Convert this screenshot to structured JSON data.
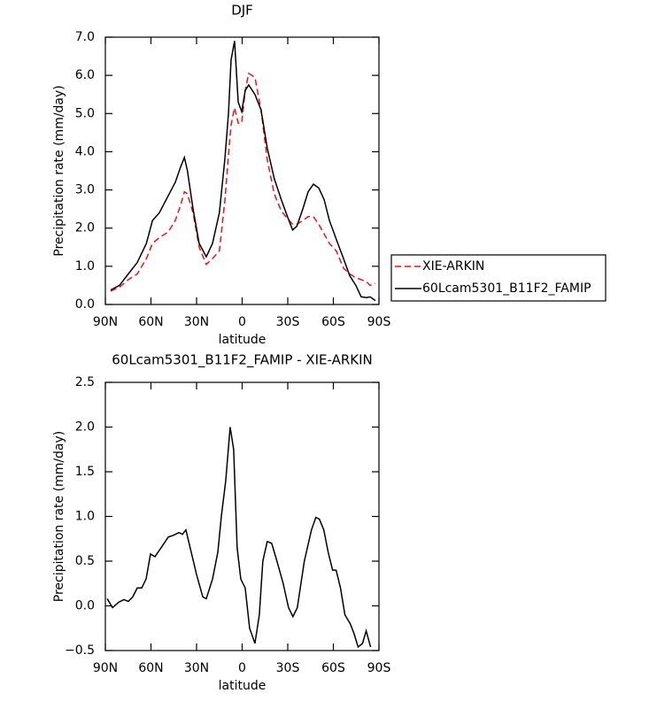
{
  "chart_data": [
    {
      "type": "line",
      "title": "DJF",
      "xlabel": "latitude",
      "ylabel": "Precipitation rate (mm/day)",
      "x": [
        86.5,
        80.7,
        74.9,
        69,
        63,
        59,
        54.5,
        48.6,
        44,
        40.5,
        38,
        36,
        32.3,
        28.3,
        23.6,
        19.5,
        15,
        11.4,
        9,
        7.3,
        5,
        2.6,
        0.3,
        -2,
        -4.3,
        -8.4,
        -12.4,
        -16.5,
        -21.1,
        -25.7,
        -29.8,
        -33.2,
        -36,
        -39.9,
        -43.4,
        -46.9,
        -50.4,
        -53.9,
        -57.4,
        -62,
        -66.7,
        -70.8,
        -74.8,
        -78.3,
        -81.8,
        -84.2,
        -87.7
      ],
      "series": [
        {
          "name": "XIE-ARKIN",
          "color": "#e8141a",
          "line_style": "dashed",
          "values": [
            0.35,
            0.45,
            0.65,
            0.8,
            1.2,
            1.6,
            1.75,
            1.9,
            2.2,
            2.6,
            2.95,
            2.9,
            2.4,
            1.5,
            1.05,
            1.2,
            1.4,
            2.7,
            3.9,
            4.7,
            5.15,
            4.75,
            4.75,
            5.6,
            6.05,
            5.95,
            5.1,
            3.8,
            2.9,
            2.45,
            2.25,
            2.1,
            2.1,
            2.2,
            2.3,
            2.3,
            2.1,
            1.85,
            1.6,
            1.4,
            0.95,
            0.8,
            0.7,
            0.65,
            0.6,
            0.5,
            0.55
          ]
        },
        {
          "name": "60Lcam5301_B11F2_FAMIP",
          "color": "#000000",
          "line_style": "solid",
          "values": [
            0.38,
            0.5,
            0.8,
            1.1,
            1.6,
            2.2,
            2.4,
            2.85,
            3.2,
            3.6,
            3.85,
            3.5,
            2.5,
            1.6,
            1.25,
            1.6,
            2.4,
            3.8,
            5.0,
            6.4,
            6.9,
            5.3,
            5.05,
            5.6,
            5.75,
            5.5,
            5.1,
            4.1,
            3.3,
            2.75,
            2.3,
            1.95,
            2.05,
            2.5,
            2.95,
            3.15,
            3.05,
            2.75,
            2.2,
            1.7,
            1.2,
            0.75,
            0.5,
            0.2,
            0.18,
            0.2,
            0.1
          ]
        }
      ],
      "legend": "right",
      "xlim": [
        90,
        -90
      ],
      "xticks": [
        {
          "value": 90,
          "label": "90N"
        },
        {
          "value": 60,
          "label": "60N"
        },
        {
          "value": 30,
          "label": "30N"
        },
        0,
        {
          "value": -30,
          "label": "30S"
        },
        {
          "value": -60,
          "label": "60S"
        },
        {
          "value": -90,
          "label": "90S"
        }
      ],
      "ylim": [
        0,
        7
      ],
      "yticks": [
        {
          "value": 0,
          "label": "0.0"
        },
        {
          "value": 1,
          "label": "1.0"
        },
        {
          "value": 2,
          "label": "2.0"
        },
        {
          "value": 3,
          "label": "3.0"
        },
        {
          "value": 4,
          "label": "4.0"
        },
        {
          "value": 5,
          "label": "5.0"
        },
        {
          "value": 6,
          "label": "6.0"
        },
        {
          "value": 7,
          "label": "7.0"
        }
      ]
    },
    {
      "type": "line",
      "title": "60Lcam5301_B11F2_FAMIP - XIE-ARKIN",
      "xlabel": "latitude",
      "ylabel": "Precipitation rate (mm/day)",
      "color": "#000000",
      "x": [
        88.8,
        85.3,
        81.3,
        77.8,
        74.9,
        72,
        69,
        66.1,
        63.2,
        60.3,
        57.4,
        53.3,
        48.6,
        45.1,
        41.6,
        39.3,
        37,
        33.5,
        30,
        25.9,
        23.6,
        19.5,
        16,
        13.7,
        10.8,
        7.9,
        5.6,
        3.3,
        0.9,
        -2,
        -4.9,
        -8.4,
        -11.3,
        -13.6,
        -16.5,
        -19.4,
        -22.9,
        -27,
        -30.5,
        -33.4,
        -36.3,
        -40.9,
        -45.6,
        -48.5,
        -50.8,
        -53.7,
        -56.6,
        -59.5,
        -61.8,
        -64.7,
        -67.6,
        -71.1,
        -73.4,
        -76.3,
        -79.2,
        -81.6,
        -84.5
      ],
      "values": [
        0.08,
        -0.02,
        0.04,
        0.07,
        0.05,
        0.1,
        0.2,
        0.2,
        0.3,
        0.58,
        0.55,
        0.65,
        0.77,
        0.79,
        0.82,
        0.8,
        0.85,
        0.6,
        0.35,
        0.1,
        0.08,
        0.3,
        0.6,
        1.0,
        1.4,
        2.0,
        1.75,
        0.65,
        0.3,
        0.2,
        -0.25,
        -0.42,
        -0.1,
        0.5,
        0.72,
        0.7,
        0.5,
        0.25,
        -0.02,
        -0.12,
        -0.02,
        0.5,
        0.85,
        0.99,
        0.97,
        0.85,
        0.6,
        0.4,
        0.4,
        0.2,
        -0.1,
        -0.2,
        -0.3,
        -0.46,
        -0.42,
        -0.28,
        -0.46
      ],
      "xlim": [
        90,
        -90
      ],
      "xticks": [
        {
          "value": 90,
          "label": "90N"
        },
        {
          "value": 60,
          "label": "60N"
        },
        {
          "value": 30,
          "label": "30N"
        },
        0,
        {
          "value": -30,
          "label": "30S"
        },
        {
          "value": -60,
          "label": "60S"
        },
        {
          "value": -90,
          "label": "90S"
        }
      ],
      "ylim": [
        -0.5,
        2.5
      ],
      "yticks": [
        {
          "value": -0.5,
          "label": "−0.5"
        },
        {
          "value": 0,
          "label": "0.0"
        },
        {
          "value": 0.5,
          "label": "0.5"
        },
        {
          "value": 1,
          "label": "1.0"
        },
        {
          "value": 1.5,
          "label": "1.5"
        },
        {
          "value": 2,
          "label": "2.0"
        },
        {
          "value": 2.5,
          "label": "2.5"
        }
      ]
    }
  ]
}
